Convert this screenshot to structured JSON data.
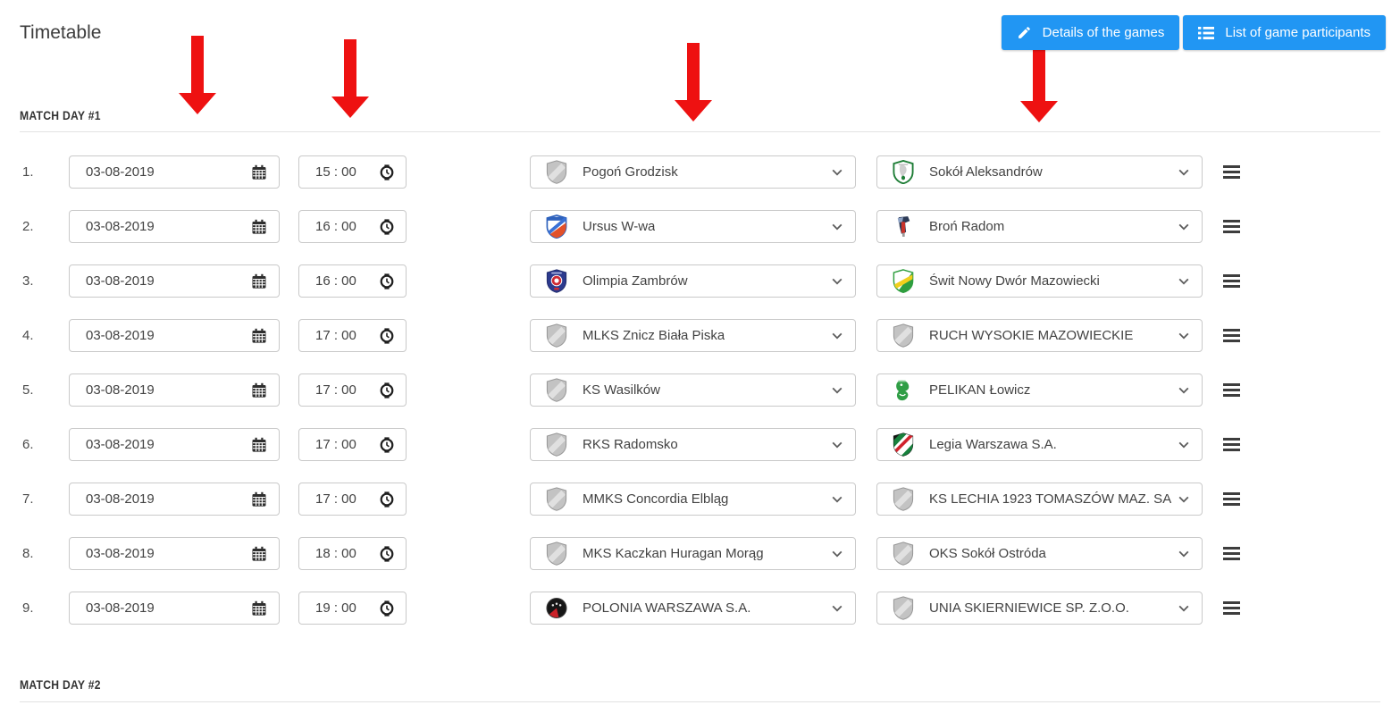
{
  "page": {
    "title": "Timetable"
  },
  "header": {
    "buttons": [
      {
        "label": "Details of the games",
        "icon": "pencil-icon"
      },
      {
        "label": "List of game participants",
        "icon": "list-icon"
      }
    ]
  },
  "colors": {
    "accent_blue": "#2196f3",
    "arrow_red": "#ee1111",
    "input_border": "#c9c9c9"
  },
  "icons": {
    "date_field": "calendar-icon",
    "time_field": "clock-icon",
    "team_select": "chevron-down-icon",
    "row_handle": "drag-handle-icon"
  },
  "annotations": {
    "red_arrows_count": 4
  },
  "matchday1": {
    "title": "MATCH DAY #1",
    "rows": [
      {
        "num": "1.",
        "date": "03-08-2019",
        "time": "15 : 00",
        "home": "Pogoń Grodzisk",
        "home_logo": "generic",
        "away": "Sokół Aleksandrów",
        "away_logo": "sokol"
      },
      {
        "num": "2.",
        "date": "03-08-2019",
        "time": "16 : 00",
        "home": "Ursus W-wa",
        "home_logo": "ursus",
        "away": "Broń Radom",
        "away_logo": "bron"
      },
      {
        "num": "3.",
        "date": "03-08-2019",
        "time": "16 : 00",
        "home": "Olimpia Zambrów",
        "home_logo": "olimpia",
        "away": "Świt Nowy Dwór Mazowiecki",
        "away_logo": "swit"
      },
      {
        "num": "4.",
        "date": "03-08-2019",
        "time": "17 : 00",
        "home": "MLKS Znicz Biała Piska",
        "home_logo": "generic",
        "away": "RUCH WYSOKIE MAZOWIECKIE",
        "away_logo": "generic"
      },
      {
        "num": "5.",
        "date": "03-08-2019",
        "time": "17 : 00",
        "home": "KS Wasilków",
        "home_logo": "generic",
        "away": "PELIKAN Łowicz",
        "away_logo": "pelikan"
      },
      {
        "num": "6.",
        "date": "03-08-2019",
        "time": "17 : 00",
        "home": "RKS Radomsko",
        "home_logo": "generic",
        "away": "Legia Warszawa S.A.",
        "away_logo": "legia"
      },
      {
        "num": "7.",
        "date": "03-08-2019",
        "time": "17 : 00",
        "home": "MMKS Concordia Elbląg",
        "home_logo": "generic",
        "away": "KS LECHIA 1923 TOMASZÓW MAZ. SA",
        "away_logo": "generic"
      },
      {
        "num": "8.",
        "date": "03-08-2019",
        "time": "18 : 00",
        "home": "MKS Kaczkan Huragan Morąg",
        "home_logo": "generic",
        "away": "OKS Sokół Ostróda",
        "away_logo": "generic"
      },
      {
        "num": "9.",
        "date": "03-08-2019",
        "time": "19 : 00",
        "home": "POLONIA WARSZAWA S.A.",
        "home_logo": "polonia",
        "away": "UNIA SKIERNIEWICE SP. Z.O.O.",
        "away_logo": "generic"
      }
    ]
  },
  "matchday2": {
    "title": "MATCH DAY #2"
  }
}
